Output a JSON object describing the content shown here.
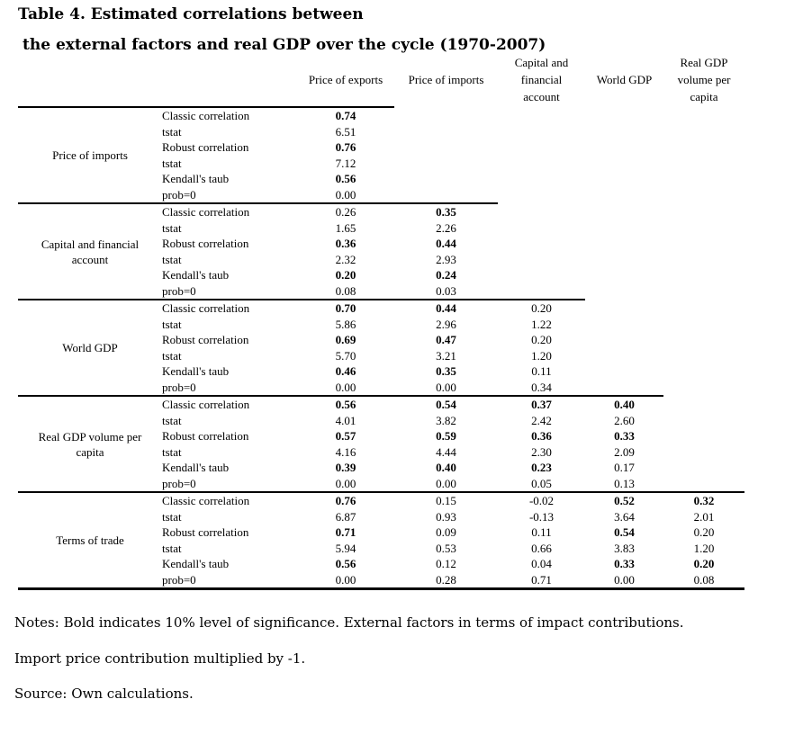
{
  "title": {
    "line1": "Table 4. Estimated correlations between",
    "line2": "the external factors and real GDP over the cycle (1970-2007)"
  },
  "table": {
    "columns": [
      "Price of exports",
      "Price of imports",
      "Capital and\nfinancial\naccount",
      "World GDP",
      "Real GDP\nvolume per\ncapita"
    ],
    "groups": [
      {
        "label": "Price of imports",
        "rows": [
          {
            "stat": "Classic correlation",
            "cells": [
              "0.74",
              "",
              "",
              "",
              ""
            ],
            "bold": [
              1,
              0,
              0,
              0,
              0
            ]
          },
          {
            "stat": "tstat",
            "cells": [
              "6.51",
              "",
              "",
              "",
              ""
            ],
            "bold": [
              0,
              0,
              0,
              0,
              0
            ]
          },
          {
            "stat": "Robust correlation",
            "cells": [
              "0.76",
              "",
              "",
              "",
              ""
            ],
            "bold": [
              1,
              0,
              0,
              0,
              0
            ]
          },
          {
            "stat": "tstat",
            "cells": [
              "7.12",
              "",
              "",
              "",
              ""
            ],
            "bold": [
              0,
              0,
              0,
              0,
              0
            ]
          },
          {
            "stat": "Kendall's taub",
            "cells": [
              "0.56",
              "",
              "",
              "",
              ""
            ],
            "bold": [
              1,
              0,
              0,
              0,
              0
            ]
          },
          {
            "stat": "prob=0",
            "cells": [
              "0.00",
              "",
              "",
              "",
              ""
            ],
            "bold": [
              0,
              0,
              0,
              0,
              0
            ]
          }
        ]
      },
      {
        "label": "Capital and financial account",
        "rows": [
          {
            "stat": "Classic correlation",
            "cells": [
              "0.26",
              "0.35",
              "",
              "",
              ""
            ],
            "bold": [
              0,
              1,
              0,
              0,
              0
            ]
          },
          {
            "stat": "tstat",
            "cells": [
              "1.65",
              "2.26",
              "",
              "",
              ""
            ],
            "bold": [
              0,
              0,
              0,
              0,
              0
            ]
          },
          {
            "stat": "Robust correlation",
            "cells": [
              "0.36",
              "0.44",
              "",
              "",
              ""
            ],
            "bold": [
              1,
              1,
              0,
              0,
              0
            ]
          },
          {
            "stat": "tstat",
            "cells": [
              "2.32",
              "2.93",
              "",
              "",
              ""
            ],
            "bold": [
              0,
              0,
              0,
              0,
              0
            ]
          },
          {
            "stat": "Kendall's taub",
            "cells": [
              "0.20",
              "0.24",
              "",
              "",
              ""
            ],
            "bold": [
              1,
              1,
              0,
              0,
              0
            ]
          },
          {
            "stat": "prob=0",
            "cells": [
              "0.08",
              "0.03",
              "",
              "",
              ""
            ],
            "bold": [
              0,
              0,
              0,
              0,
              0
            ]
          }
        ]
      },
      {
        "label": "World GDP",
        "rows": [
          {
            "stat": "Classic correlation",
            "cells": [
              "0.70",
              "0.44",
              "0.20",
              "",
              ""
            ],
            "bold": [
              1,
              1,
              0,
              0,
              0
            ]
          },
          {
            "stat": "tstat",
            "cells": [
              "5.86",
              "2.96",
              "1.22",
              "",
              ""
            ],
            "bold": [
              0,
              0,
              0,
              0,
              0
            ]
          },
          {
            "stat": "Robust correlation",
            "cells": [
              "0.69",
              "0.47",
              "0.20",
              "",
              ""
            ],
            "bold": [
              1,
              1,
              0,
              0,
              0
            ]
          },
          {
            "stat": "tstat",
            "cells": [
              "5.70",
              "3.21",
              "1.20",
              "",
              ""
            ],
            "bold": [
              0,
              0,
              0,
              0,
              0
            ]
          },
          {
            "stat": "Kendall's taub",
            "cells": [
              "0.46",
              "0.35",
              "0.11",
              "",
              ""
            ],
            "bold": [
              1,
              1,
              0,
              0,
              0
            ]
          },
          {
            "stat": "prob=0",
            "cells": [
              "0.00",
              "0.00",
              "0.34",
              "",
              ""
            ],
            "bold": [
              0,
              0,
              0,
              0,
              0
            ]
          }
        ]
      },
      {
        "label": "Real GDP volume per capita",
        "rows": [
          {
            "stat": "Classic correlation",
            "cells": [
              "0.56",
              "0.54",
              "0.37",
              "0.40",
              ""
            ],
            "bold": [
              1,
              1,
              1,
              1,
              0
            ]
          },
          {
            "stat": "tstat",
            "cells": [
              "4.01",
              "3.82",
              "2.42",
              "2.60",
              ""
            ],
            "bold": [
              0,
              0,
              0,
              0,
              0
            ]
          },
          {
            "stat": "Robust correlation",
            "cells": [
              "0.57",
              "0.59",
              "0.36",
              "0.33",
              ""
            ],
            "bold": [
              1,
              1,
              1,
              1,
              0
            ]
          },
          {
            "stat": "tstat",
            "cells": [
              "4.16",
              "4.44",
              "2.30",
              "2.09",
              ""
            ],
            "bold": [
              0,
              0,
              0,
              0,
              0
            ]
          },
          {
            "stat": "Kendall's taub",
            "cells": [
              "0.39",
              "0.40",
              "0.23",
              "0.17",
              ""
            ],
            "bold": [
              1,
              1,
              1,
              0,
              0
            ]
          },
          {
            "stat": "prob=0",
            "cells": [
              "0.00",
              "0.00",
              "0.05",
              "0.13",
              ""
            ],
            "bold": [
              0,
              0,
              0,
              0,
              0
            ]
          }
        ]
      },
      {
        "label": "Terms of trade",
        "rows": [
          {
            "stat": "Classic correlation",
            "cells": [
              "0.76",
              "0.15",
              "-0.02",
              "0.52",
              "0.32"
            ],
            "bold": [
              1,
              0,
              0,
              1,
              1
            ]
          },
          {
            "stat": "tstat",
            "cells": [
              "6.87",
              "0.93",
              "-0.13",
              "3.64",
              "2.01"
            ],
            "bold": [
              0,
              0,
              0,
              0,
              0
            ]
          },
          {
            "stat": "Robust correlation",
            "cells": [
              "0.71",
              "0.09",
              "0.11",
              "0.54",
              "0.20"
            ],
            "bold": [
              1,
              0,
              0,
              1,
              0
            ]
          },
          {
            "stat": "tstat",
            "cells": [
              "5.94",
              "0.53",
              "0.66",
              "3.83",
              "1.20"
            ],
            "bold": [
              0,
              0,
              0,
              0,
              0
            ]
          },
          {
            "stat": "Kendall's taub",
            "cells": [
              "0.56",
              "0.12",
              "0.04",
              "0.33",
              "0.20"
            ],
            "bold": [
              1,
              0,
              0,
              1,
              1
            ]
          },
          {
            "stat": "prob=0",
            "cells": [
              "0.00",
              "0.28",
              "0.71",
              "0.00",
              "0.08"
            ],
            "bold": [
              0,
              0,
              0,
              0,
              0
            ]
          }
        ]
      }
    ]
  },
  "notes": [
    "Notes: Bold indicates 10% level of significance. External factors in terms of impact contributions.",
    "Import price contribution multiplied by -1.",
    "Source: Own calculations."
  ]
}
